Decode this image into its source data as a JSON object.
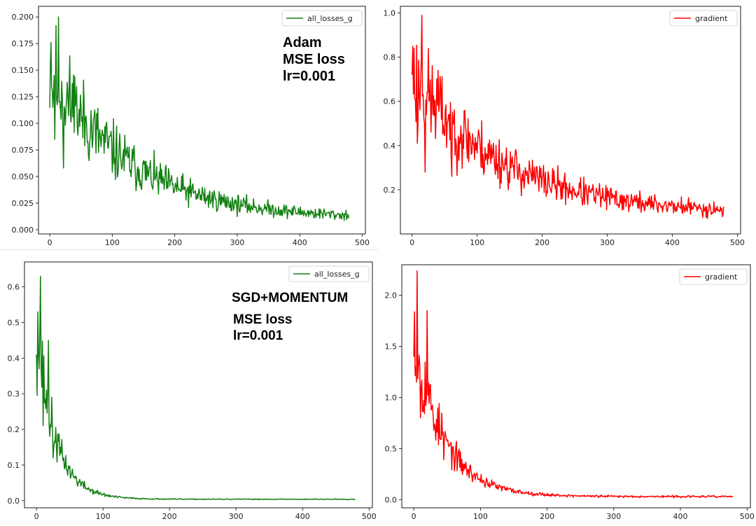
{
  "chart_data": [
    {
      "type": "line",
      "optimizer": "Adam",
      "annotations": [
        "Adam",
        "MSE loss",
        "lr=0.001"
      ],
      "legend": "all_losses_g",
      "color": "#128012",
      "xlim": [
        -18,
        505
      ],
      "ylim": [
        -0.004,
        0.21
      ],
      "xticks": [
        0,
        100,
        200,
        300,
        400,
        500
      ],
      "yticks": [
        0.0,
        0.025,
        0.05,
        0.075,
        0.1,
        0.125,
        0.15,
        0.175,
        0.2
      ],
      "ytick_labels": [
        "0.000",
        "0.025",
        "0.050",
        "0.075",
        "0.100",
        "0.125",
        "0.150",
        "0.175",
        "0.200"
      ],
      "series": [
        {
          "n": 480,
          "start": 0.15,
          "end": 0.01,
          "decay": 130,
          "noise": 0.35,
          "spikes": [
            [
              2,
              0.176
            ],
            [
              5,
              0.115
            ],
            [
              14,
              0.2
            ],
            [
              8,
              0.085
            ],
            [
              22,
              0.058
            ],
            [
              40,
              0.144
            ]
          ],
          "min": 0.004,
          "seed": 11
        }
      ]
    },
    {
      "type": "line",
      "optimizer": "Adam",
      "legend": "gradient",
      "color": "#ff0000",
      "xlim": [
        -18,
        505
      ],
      "ylim": [
        0.0,
        1.03
      ],
      "xticks": [
        0,
        100,
        200,
        300,
        400,
        500
      ],
      "yticks": [
        0.2,
        0.4,
        0.6,
        0.8,
        1.0
      ],
      "ytick_labels": [
        "0.2",
        "0.4",
        "0.6",
        "0.8",
        "1.0"
      ],
      "series": [
        {
          "n": 480,
          "start": 0.72,
          "end": 0.09,
          "decay": 140,
          "noise": 0.32,
          "spikes": [
            [
              0,
              0.72
            ],
            [
              3,
              0.84
            ],
            [
              8,
              0.41
            ],
            [
              15,
              0.99
            ],
            [
              20,
              0.28
            ],
            [
              40,
              0.74
            ],
            [
              61,
              0.26
            ]
          ],
          "min": 0.05,
          "seed": 23
        }
      ]
    },
    {
      "type": "line",
      "optimizer": "SGD+MOMENTUM",
      "annotations": [
        "SGD+MOMENTUM",
        "MSE loss",
        "lr=0.001"
      ],
      "legend": "all_losses_g",
      "color": "#128012",
      "xlim": [
        -18,
        505
      ],
      "ylim": [
        -0.02,
        0.67
      ],
      "xticks": [
        0,
        100,
        200,
        300,
        400,
        500
      ],
      "yticks": [
        0.0,
        0.1,
        0.2,
        0.3,
        0.4,
        0.5,
        0.6
      ],
      "ytick_labels": [
        "0.0",
        "0.1",
        "0.2",
        "0.3",
        "0.4",
        "0.5",
        "0.6"
      ],
      "series": [
        {
          "n": 480,
          "start": 0.48,
          "end": 0.004,
          "decay": 28,
          "noise": 0.3,
          "spikes": [
            [
              0,
              0.41
            ],
            [
              2,
              0.53
            ],
            [
              4,
              0.37
            ],
            [
              6,
              0.63
            ],
            [
              10,
              0.21
            ],
            [
              18,
              0.45
            ],
            [
              25,
              0.12
            ]
          ],
          "min": 0.001,
          "seed": 37
        }
      ]
    },
    {
      "type": "line",
      "optimizer": "SGD+MOMENTUM",
      "legend": "gradient",
      "color": "#ff0000",
      "xlim": [
        -18,
        505
      ],
      "ylim": [
        -0.08,
        2.3
      ],
      "xticks": [
        0,
        100,
        200,
        300,
        400,
        500
      ],
      "yticks": [
        0.0,
        0.5,
        1.0,
        1.5,
        2.0
      ],
      "ytick_labels": [
        "0.0",
        "0.5",
        "1.0",
        "1.5",
        "2.0"
      ],
      "series": [
        {
          "n": 480,
          "start": 1.6,
          "end": 0.03,
          "decay": 45,
          "noise": 0.3,
          "spikes": [
            [
              0,
              1.4
            ],
            [
              1,
              1.84
            ],
            [
              3,
              1.3
            ],
            [
              5,
              2.24
            ],
            [
              10,
              0.8
            ],
            [
              20,
              1.85
            ],
            [
              30,
              0.68
            ],
            [
              45,
              0.39
            ]
          ],
          "min": 0.01,
          "seed": 53
        }
      ]
    }
  ]
}
